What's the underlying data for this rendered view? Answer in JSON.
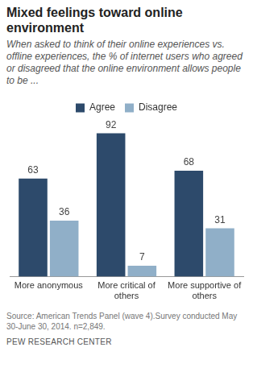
{
  "chart_data": {
    "type": "bar",
    "title": "Mixed feelings toward online environment",
    "subtitle": "When asked to think of their online experiences vs. offline experiences, the % of internet users who agreed or disagreed that the online environment allows people to be ...",
    "categories": [
      "More anonymous",
      "More critical of others",
      "More supportive of others"
    ],
    "series": [
      {
        "name": "Agree",
        "color": "#2d4a6b",
        "values": [
          63,
          92,
          68
        ]
      },
      {
        "name": "Disagree",
        "color": "#90afc8",
        "values": [
          36,
          7,
          31
        ]
      }
    ],
    "legend": "top",
    "grid": false,
    "data_labels": true,
    "tick_labels": "x",
    "source": "Source: American Trends Panel (wave 4).Survey conducted May 30-June 30, 2014. n=2,849.",
    "credit": "PEW RESEARCH CENTER"
  }
}
